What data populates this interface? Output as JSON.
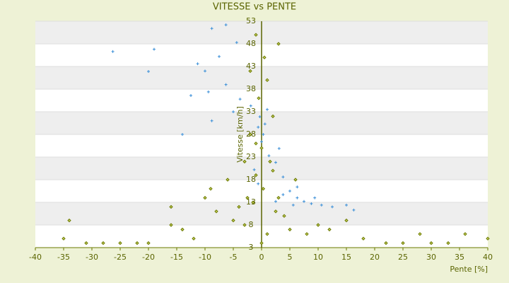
{
  "chart_data": {
    "type": "scatter",
    "title": "VITESSE vs PENTE",
    "x_label": "Pente [%]",
    "y_label": "Vitesse [km/h]",
    "xlim": [
      -40,
      40
    ],
    "xticks": [
      -40,
      -35,
      -30,
      -25,
      -20,
      -15,
      -10,
      -5,
      0,
      5,
      10,
      15,
      20,
      25,
      30,
      35,
      40
    ],
    "ylim": [
      3,
      53
    ],
    "yticks": [
      3,
      8,
      13,
      18,
      23,
      28,
      33,
      38,
      43,
      48,
      53
    ],
    "grid": true,
    "series": [
      {
        "color": "#3a8fd8",
        "marker": "plus",
        "x": [
          -26.3,
          -19,
          -20,
          -12.5,
          -14,
          -8.8,
          -7.5,
          -10,
          -6.3,
          -8.8,
          -5,
          -3.8,
          -0.6,
          0,
          0.6,
          1.3,
          2.5,
          3.8,
          5,
          6.3,
          7.5,
          8.8,
          10.6,
          12.5,
          15,
          16.3,
          2.5,
          3.8,
          5.6,
          -1.3,
          -0.6,
          0.3,
          -0.3,
          -1.9,
          -4.4,
          -6.3,
          -11.3,
          -9.4,
          1,
          3.1,
          6.3,
          9.4
        ],
        "values": [
          46.3,
          46.8,
          41.9,
          36.6,
          28,
          51.4,
          45.2,
          42,
          39,
          31,
          33,
          35.8,
          29.6,
          26.4,
          30.3,
          23.3,
          21.8,
          18.6,
          15.5,
          14,
          13.2,
          12.7,
          12.4,
          12,
          12.4,
          11.3,
          13.2,
          14.7,
          12.4,
          20.2,
          17.1,
          28,
          31.9,
          34.3,
          48.3,
          52.2,
          43.6,
          37.4,
          33.5,
          24.9,
          16.4,
          14
        ]
      },
      {
        "color": "#6b7a00",
        "marker": "diamond",
        "x": [
          -1,
          0.5,
          1,
          -0.5,
          2,
          -2,
          0,
          1.5,
          -1,
          0.3,
          -1.5,
          2.5,
          -3,
          1,
          0,
          3,
          -2,
          -2.5,
          4,
          -4,
          5,
          -5,
          -8,
          -10,
          -12,
          -16,
          -16,
          -25,
          -28,
          -35,
          -34,
          -20,
          8,
          10,
          15,
          18,
          22,
          25,
          30,
          33,
          36,
          40,
          -6,
          -9,
          6,
          2,
          -1,
          3,
          -3,
          12,
          -14,
          -22,
          28,
          -31
        ],
        "values": [
          50,
          45,
          40,
          36,
          32,
          28,
          25,
          22,
          19,
          16,
          13,
          11,
          8,
          6,
          4,
          48,
          42,
          14,
          10,
          12,
          7,
          9,
          11,
          14,
          5,
          8,
          12,
          4,
          4,
          5,
          9,
          4,
          6,
          8,
          9,
          5,
          4,
          4,
          4,
          4,
          6,
          5,
          18,
          16,
          18,
          20,
          26,
          14,
          22,
          7,
          7,
          4,
          6,
          4
        ]
      }
    ]
  }
}
